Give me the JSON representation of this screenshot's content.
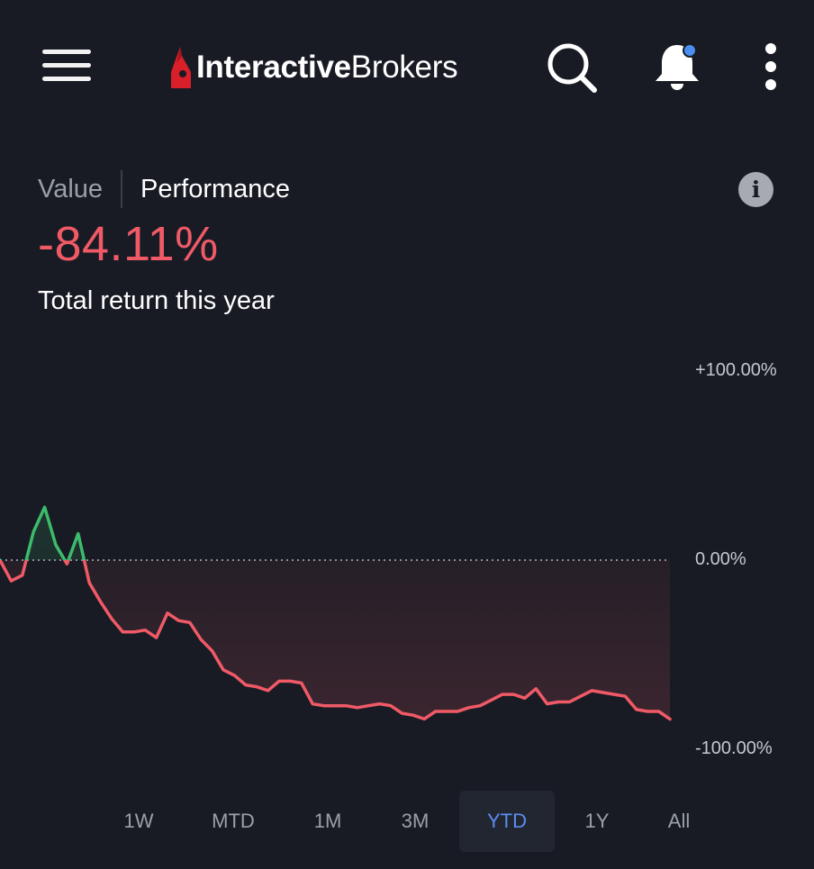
{
  "app": {
    "logo_bold": "Interactive",
    "logo_regular": "Brokers",
    "brand_color": "#d81f2a"
  },
  "header": {
    "menu_icon": "hamburger-icon",
    "search_icon": "search-icon",
    "bell_icon": "bell-icon",
    "more_icon": "more-vertical-icon",
    "notification_dot_color": "#4a8ef0"
  },
  "toggle": {
    "value_label": "Value",
    "performance_label": "Performance",
    "selected": "Performance"
  },
  "info_icon": "info-icon",
  "info_glyph": "i",
  "summary": {
    "return_value": "-84.11%",
    "return_label": "Total return this year",
    "negative_color": "#f05a67",
    "positive_color": "#3dbb6b"
  },
  "chart_data": {
    "type": "line",
    "title": "",
    "xlabel": "",
    "ylabel": "",
    "ylim": [
      -100,
      100
    ],
    "y_tick_labels": [
      "+100.00%",
      "0.00%",
      "-100.00%"
    ],
    "baseline": 0,
    "baseline_style": "dotted",
    "series": [
      {
        "values": [
          0,
          -11,
          -8,
          15,
          28,
          8,
          -2,
          14,
          -12,
          -22,
          -31,
          -38,
          -38,
          -37,
          -41,
          -28,
          -32,
          -33,
          -42,
          -48,
          -58,
          -61,
          -66,
          -67,
          -69,
          -64,
          -64,
          -65,
          -76,
          -77,
          -77,
          -77,
          -78,
          -77,
          -76,
          -77,
          -81,
          -82,
          -84,
          -80,
          -80,
          -80,
          -78,
          -77,
          -74,
          -71,
          -71,
          -73,
          -68,
          -76,
          -75,
          -75,
          -72,
          -69,
          -70,
          -71,
          -72,
          -79,
          -80,
          -80,
          -84.11
        ]
      }
    ]
  },
  "ranges": {
    "items": [
      "1W",
      "MTD",
      "1M",
      "3M",
      "YTD",
      "1Y",
      "All"
    ],
    "selected": "YTD",
    "active_color": "#5b8def"
  }
}
